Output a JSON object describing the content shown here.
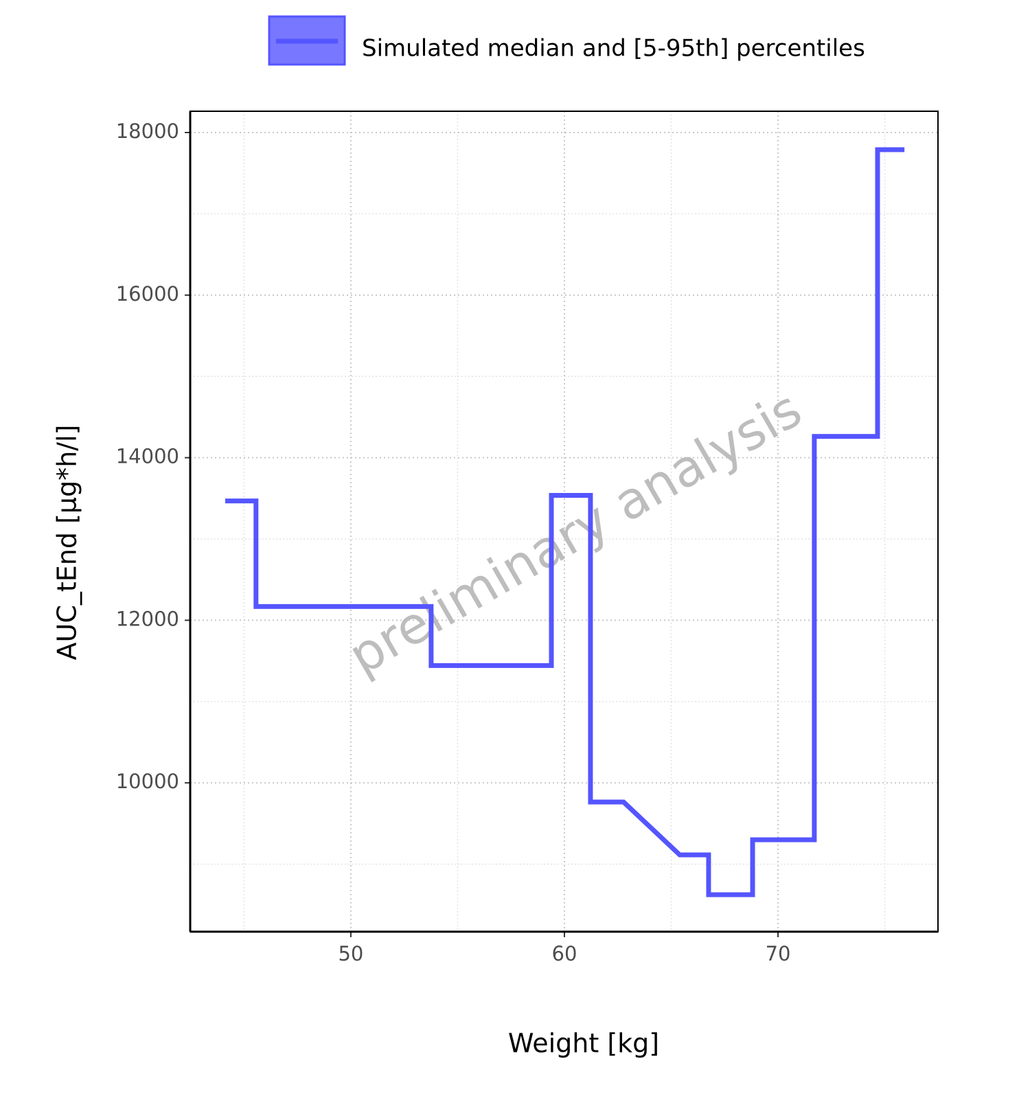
{
  "chart_data": {
    "type": "line",
    "x_label": "Weight [kg]",
    "y_label": "AUC_tEnd [µg*h/l]",
    "watermark": "preliminary analysis",
    "x": [
      44.12,
      45.56,
      45.56,
      53.76,
      53.76,
      59.39,
      59.39,
      61.22,
      61.22,
      62.77,
      65.4,
      66.75,
      66.75,
      68.81,
      68.81,
      71.7,
      71.7,
      74.66,
      74.66,
      75.92
    ],
    "series": [
      {
        "name": "Simulated median and [5-95th] percentiles",
        "color": "#5555ff",
        "values": [
          13468,
          13468,
          12169,
          12169,
          11443,
          11443,
          13536,
          13536,
          9764,
          9764,
          9114,
          9114,
          8624,
          8624,
          9300,
          9300,
          14262,
          14262,
          17789,
          17789
        ]
      }
    ],
    "xlim": [
      42.48,
      77.49
    ],
    "ylim": [
      8169,
      18262
    ],
    "xticks": [
      50,
      60,
      70
    ],
    "yticks": [
      10000,
      12000,
      14000,
      16000,
      18000
    ],
    "grid": true,
    "minor_grid": true,
    "legend": "top"
  }
}
